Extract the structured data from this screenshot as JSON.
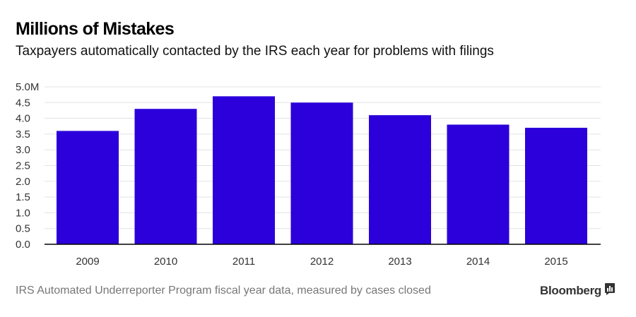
{
  "header": {
    "title": "Millions of Mistakes",
    "subtitle": "Taxpayers automatically contacted by the IRS each year for problems with filings"
  },
  "footer": {
    "source": "IRS Automated Underreporter Program fiscal year data, measured by cases closed",
    "brand": "Bloomberg"
  },
  "colors": {
    "bar": "#2b00db",
    "grid": "#e3e3e3",
    "axis": "#000000"
  },
  "chart_data": {
    "type": "bar",
    "title": "Millions of Mistakes",
    "subtitle": "Taxpayers automatically contacted by the IRS each year for problems with filings",
    "xlabel": "",
    "ylabel": "",
    "categories": [
      "2009",
      "2010",
      "2011",
      "2012",
      "2013",
      "2014",
      "2015"
    ],
    "values": [
      3.6,
      4.3,
      4.7,
      4.5,
      4.1,
      3.8,
      3.7
    ],
    "ylim": [
      0,
      5
    ],
    "yticks": [
      0,
      0.5,
      1.0,
      1.5,
      2.0,
      2.5,
      3.0,
      3.5,
      4.0,
      4.5,
      5.0
    ],
    "ytick_labels": [
      "0.0",
      "0.5",
      "1.0",
      "1.5",
      "2.0",
      "2.5",
      "3.0",
      "3.5",
      "4.0",
      "4.5",
      "5.0M"
    ],
    "grid": true,
    "legend": "none"
  }
}
